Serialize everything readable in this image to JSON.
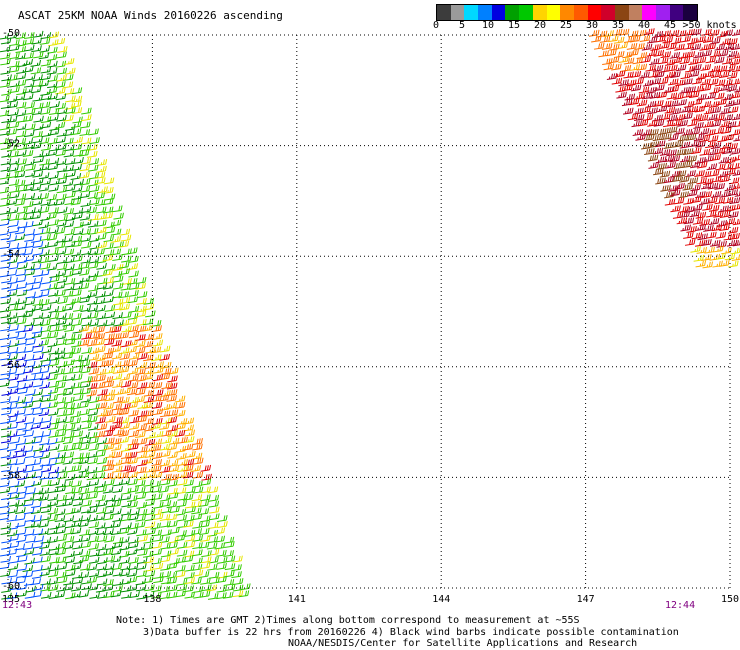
{
  "title": "ASCAT 25KM NOAA Winds 20160226 ascending",
  "colorbar": {
    "colors": [
      "#3c3c3c",
      "#9a9a9a",
      "#00d8ff",
      "#0080ff",
      "#0000e0",
      "#00a000",
      "#00c800",
      "#ffd400",
      "#ffff00",
      "#ff8800",
      "#ff5a00",
      "#ff0000",
      "#d0002a",
      "#8b4513",
      "#c08060",
      "#ff00ff",
      "#a020f0",
      "#400080",
      "#1a0040"
    ],
    "labels": [
      "0",
      "5",
      "10",
      "15",
      "20",
      "25",
      "30",
      "35",
      "40",
      "45",
      ">50 knots"
    ],
    "label_ticks": [
      0,
      5,
      10,
      15,
      20,
      25,
      30,
      35,
      40,
      45,
      50
    ],
    "label_positions_fraction": [
      0.0,
      0.1,
      0.2,
      0.3,
      0.4,
      0.5,
      0.6,
      0.7,
      0.8,
      0.9,
      1.0
    ]
  },
  "map": {
    "lon_labels": [
      "135",
      "138",
      "141",
      "144",
      "147",
      "150"
    ],
    "lon_values": [
      135,
      138,
      141,
      144,
      147,
      150
    ],
    "lat_labels": [
      "-50",
      "-52",
      "-54",
      "-56",
      "-58",
      "-60"
    ],
    "lat_values": [
      -50,
      -52,
      -54,
      -56,
      -58,
      -60
    ],
    "time_left": "12:43",
    "time_right": "12:44",
    "time_color": "#800080"
  },
  "notes": {
    "line1": "Note: 1) Times are GMT 2)Times along bottom correspond to measurement at ~55S",
    "line2": "3)Data buffer is 22 hrs from 20160226 4) Black wind barbs indicate possible contamination",
    "line3": "NOAA/NESDIS/Center for Satellite Applications and Research"
  }
}
